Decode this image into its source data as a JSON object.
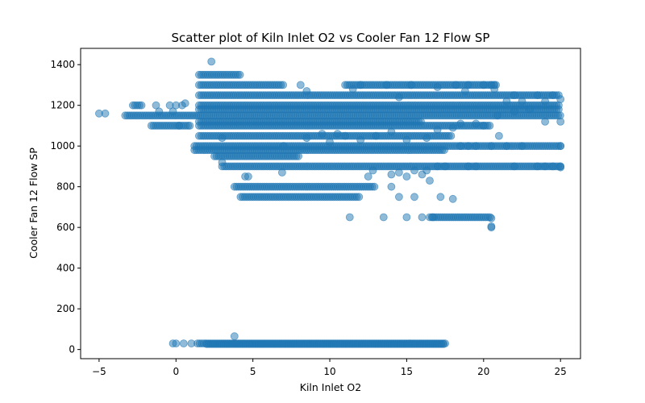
{
  "chart_data": {
    "type": "scatter",
    "title": "Scatter plot of Kiln Inlet O2 vs Cooler Fan 12 Flow SP",
    "xlabel": "Kiln Inlet O2",
    "ylabel": "Cooler Fan 12 Flow SP",
    "xlim": [
      -6.2,
      26.3
    ],
    "ylim": [
      -45,
      1480
    ],
    "xticks": [
      -5,
      0,
      5,
      10,
      15,
      20,
      25
    ],
    "yticks": [
      0,
      200,
      400,
      600,
      800,
      1000,
      1200,
      1400
    ],
    "grid": false,
    "legend": "none",
    "color": "#1f77b4",
    "alpha": 0.5,
    "segments": [
      {
        "y": 1350,
        "x": [
          1.5,
          4.2
        ]
      },
      {
        "y": 1300,
        "x": [
          1.5,
          7.0
        ]
      },
      {
        "y": 1300,
        "x": [
          11.0,
          20.8
        ]
      },
      {
        "y": 1250,
        "x": [
          1.5,
          25.0
        ]
      },
      {
        "y": 1200,
        "x": [
          -2.8,
          -2.2
        ]
      },
      {
        "y": 1200,
        "x": [
          1.5,
          25.0
        ]
      },
      {
        "y": 1180,
        "x": [
          1.5,
          25.0
        ]
      },
      {
        "y": 1150,
        "x": [
          -3.3,
          25.0
        ]
      },
      {
        "y": 1120,
        "x": [
          1.5,
          16.0
        ]
      },
      {
        "y": 1100,
        "x": [
          -1.6,
          0.8
        ]
      },
      {
        "y": 1100,
        "x": [
          1.5,
          20.5
        ]
      },
      {
        "y": 1050,
        "x": [
          1.5,
          18.0
        ]
      },
      {
        "y": 1000,
        "x": [
          1.2,
          25.0
        ]
      },
      {
        "y": 980,
        "x": [
          1.2,
          17.5
        ]
      },
      {
        "y": 950,
        "x": [
          2.5,
          8.0
        ]
      },
      {
        "y": 900,
        "x": [
          3.0,
          25.0
        ]
      },
      {
        "y": 800,
        "x": [
          3.8,
          13.0
        ]
      },
      {
        "y": 750,
        "x": [
          4.2,
          12.0
        ]
      },
      {
        "y": 650,
        "x": [
          16.5,
          20.5
        ]
      },
      {
        "y": 30,
        "x": [
          1.4,
          17.5
        ]
      },
      {
        "y": 27,
        "x": [
          2.0,
          17.5
        ]
      }
    ],
    "points": [
      [
        -5.0,
        1160
      ],
      [
        -4.6,
        1160
      ],
      [
        -1.3,
        1200
      ],
      [
        -1.1,
        1170
      ],
      [
        -0.4,
        1200
      ],
      [
        -0.2,
        1170
      ],
      [
        0.0,
        1200
      ],
      [
        0.4,
        1200
      ],
      [
        0.6,
        1210
      ],
      [
        0.9,
        1100
      ],
      [
        0.2,
        1100
      ],
      [
        2.3,
        1415
      ],
      [
        3.0,
        920
      ],
      [
        3.0,
        1040
      ],
      [
        4.7,
        850
      ],
      [
        4.5,
        850
      ],
      [
        6.9,
        870
      ],
      [
        7.0,
        1000
      ],
      [
        8.5,
        1040
      ],
      [
        11.3,
        650
      ],
      [
        12.5,
        850
      ],
      [
        12.8,
        880
      ],
      [
        13.5,
        650
      ],
      [
        14.0,
        860
      ],
      [
        14.5,
        870
      ],
      [
        14.0,
        800
      ],
      [
        14.5,
        750
      ],
      [
        15.0,
        650
      ],
      [
        15.0,
        850
      ],
      [
        15.5,
        750
      ],
      [
        15.5,
        880
      ],
      [
        16.0,
        650
      ],
      [
        16.0,
        860
      ],
      [
        16.3,
        880
      ],
      [
        16.5,
        830
      ],
      [
        16.7,
        650
      ],
      [
        17.0,
        900
      ],
      [
        17.2,
        750
      ],
      [
        17.5,
        900
      ],
      [
        18.0,
        740
      ],
      [
        18.5,
        1000
      ],
      [
        19.0,
        1000
      ],
      [
        19.5,
        1000
      ],
      [
        19.0,
        900
      ],
      [
        19.5,
        900
      ],
      [
        20.5,
        1000
      ],
      [
        20.5,
        600
      ],
      [
        20.5,
        605
      ],
      [
        20.5,
        645
      ],
      [
        20.5,
        1300
      ],
      [
        20.7,
        1300
      ],
      [
        20.7,
        1280
      ],
      [
        20.0,
        1300
      ],
      [
        19.0,
        1300
      ],
      [
        18.8,
        1270
      ],
      [
        18.2,
        1300
      ],
      [
        17.0,
        1290
      ],
      [
        15.3,
        1300
      ],
      [
        14.5,
        1240
      ],
      [
        13.7,
        1300
      ],
      [
        12.0,
        1300
      ],
      [
        11.5,
        1280
      ],
      [
        8.1,
        1300
      ],
      [
        8.5,
        1270
      ],
      [
        9.5,
        1060
      ],
      [
        10.0,
        1020
      ],
      [
        10.5,
        1060
      ],
      [
        11.0,
        1050
      ],
      [
        12.0,
        1030
      ],
      [
        13.0,
        1050
      ],
      [
        14.0,
        1070
      ],
      [
        15.0,
        1030
      ],
      [
        16.3,
        1040
      ],
      [
        17.0,
        1080
      ],
      [
        18.0,
        1090
      ],
      [
        18.5,
        1110
      ],
      [
        19.5,
        1110
      ],
      [
        20.0,
        1100
      ],
      [
        21.0,
        1050
      ],
      [
        21.5,
        1000
      ],
      [
        22.5,
        1000
      ],
      [
        22.0,
        1250
      ],
      [
        23.5,
        1250
      ],
      [
        24.5,
        1250
      ],
      [
        22.0,
        900
      ],
      [
        23.5,
        900
      ],
      [
        24.0,
        900
      ],
      [
        24.5,
        900
      ],
      [
        25.0,
        900
      ],
      [
        25.0,
        895
      ],
      [
        20.9,
        1150
      ],
      [
        22.0,
        1170
      ],
      [
        23.0,
        1180
      ],
      [
        24.0,
        1120
      ],
      [
        25.0,
        1120
      ],
      [
        21.5,
        1220
      ],
      [
        22.5,
        1220
      ],
      [
        24.0,
        1220
      ],
      [
        25.0,
        1230
      ],
      [
        25.0,
        1000
      ],
      [
        3.8,
        65
      ],
      [
        0.0,
        30
      ],
      [
        0.5,
        30
      ],
      [
        1.0,
        30
      ],
      [
        -0.2,
        30
      ]
    ]
  }
}
